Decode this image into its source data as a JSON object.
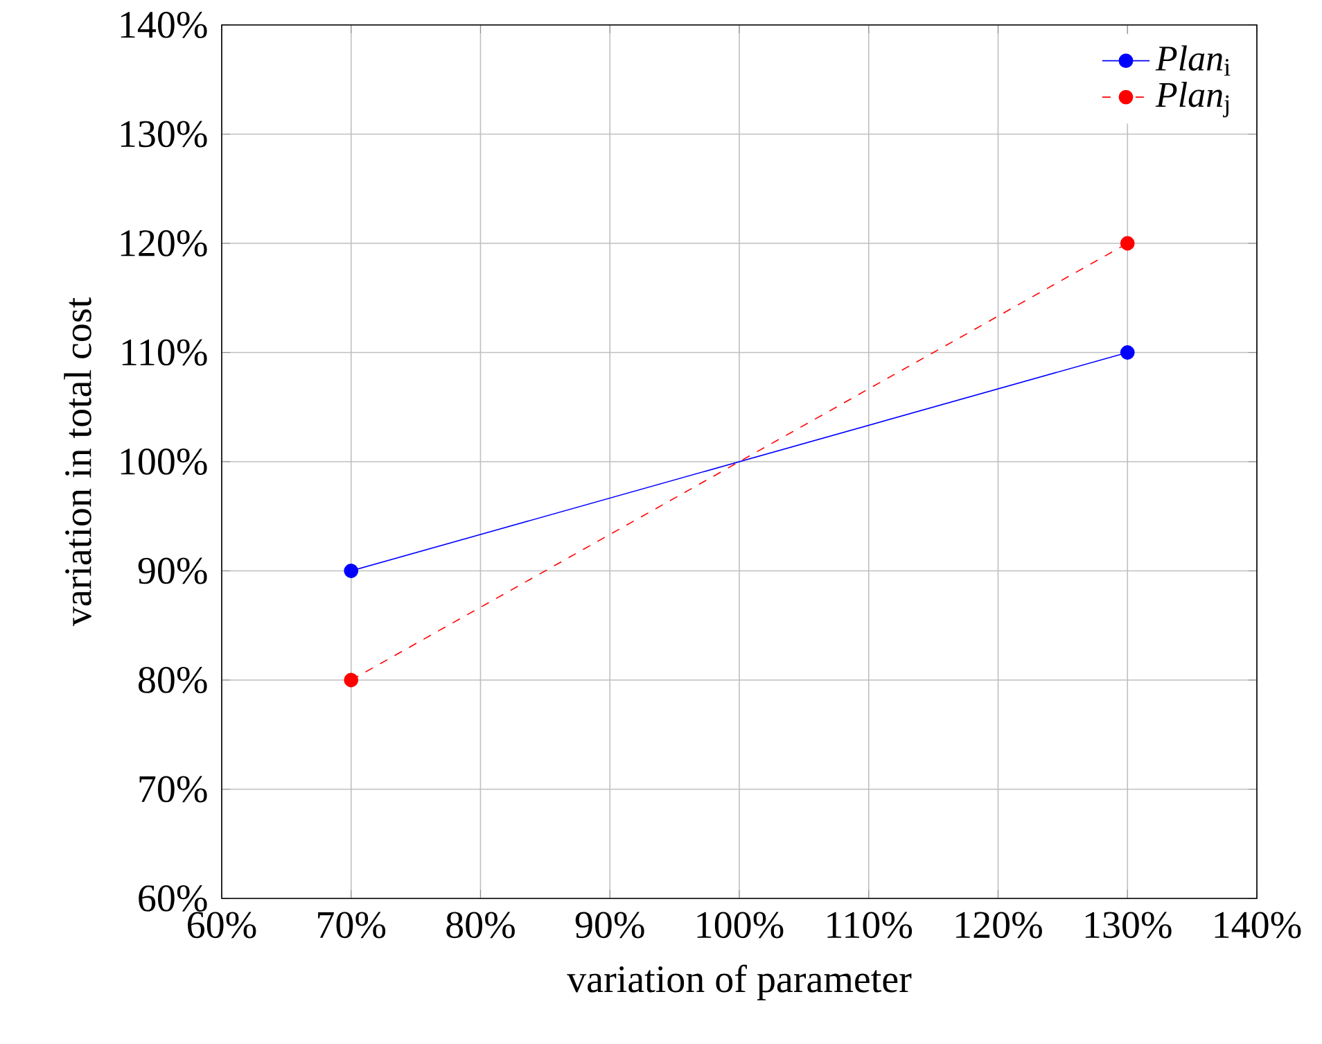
{
  "chart_data": {
    "type": "line",
    "xlabel": "variation of parameter",
    "ylabel": "variation in total cost",
    "x": [
      70,
      130
    ],
    "series": [
      {
        "name": "*Plan*$_{i}$",
        "color": "#0000ff",
        "values": [
          90,
          110
        ],
        "line_style": "solid"
      },
      {
        "name": "*Plan*$_{j}$",
        "color": "#ff0000",
        "values": [
          80,
          120
        ],
        "line_style": "dashed"
      }
    ],
    "xlim": [
      60,
      140
    ],
    "ylim": [
      60,
      140
    ],
    "xticks": [
      {
        "value": 60,
        "label": "60%"
      },
      {
        "value": 70,
        "label": "70%"
      },
      {
        "value": 80,
        "label": "80%"
      },
      {
        "value": 90,
        "label": "90%"
      },
      {
        "value": 100,
        "label": "100%"
      },
      {
        "value": 110,
        "label": "110%"
      },
      {
        "value": 120,
        "label": "120%"
      },
      {
        "value": 130,
        "label": "130%"
      },
      {
        "value": 140,
        "label": "140%"
      }
    ],
    "yticks": [
      {
        "value": 60,
        "label": "60%"
      },
      {
        "value": 70,
        "label": "70%"
      },
      {
        "value": 80,
        "label": "80%"
      },
      {
        "value": 90,
        "label": "90%"
      },
      {
        "value": 100,
        "label": "100%"
      },
      {
        "value": 110,
        "label": "110%"
      },
      {
        "value": 120,
        "label": "120%"
      },
      {
        "value": 130,
        "label": "130%"
      },
      {
        "value": 140,
        "label": "140%"
      }
    ],
    "grid": true,
    "legend": "top right",
    "marker": "circle"
  }
}
